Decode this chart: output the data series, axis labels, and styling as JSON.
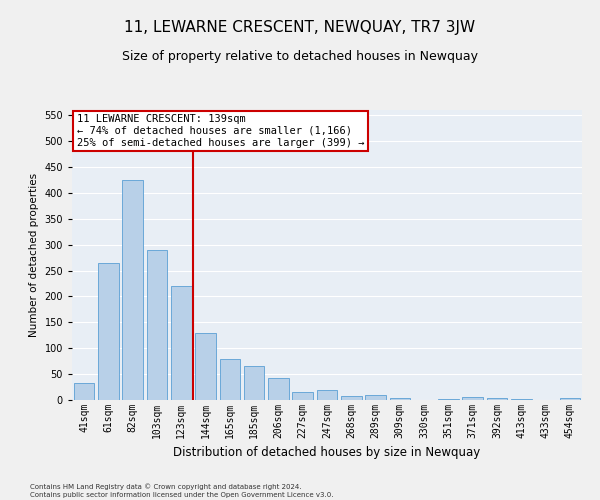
{
  "title": "11, LEWARNE CRESCENT, NEWQUAY, TR7 3JW",
  "subtitle": "Size of property relative to detached houses in Newquay",
  "xlabel": "Distribution of detached houses by size in Newquay",
  "ylabel": "Number of detached properties",
  "footer_line1": "Contains HM Land Registry data © Crown copyright and database right 2024.",
  "footer_line2": "Contains public sector information licensed under the Open Government Licence v3.0.",
  "categories": [
    "41sqm",
    "61sqm",
    "82sqm",
    "103sqm",
    "123sqm",
    "144sqm",
    "165sqm",
    "185sqm",
    "206sqm",
    "227sqm",
    "247sqm",
    "268sqm",
    "289sqm",
    "309sqm",
    "330sqm",
    "351sqm",
    "371sqm",
    "392sqm",
    "413sqm",
    "433sqm",
    "454sqm"
  ],
  "values": [
    32,
    265,
    425,
    290,
    220,
    130,
    80,
    65,
    42,
    15,
    20,
    8,
    10,
    3,
    0,
    2,
    5,
    3,
    2,
    0,
    3
  ],
  "bar_color": "#b8d0e8",
  "bar_edgecolor": "#5a9fd4",
  "vline_color": "#cc0000",
  "annotation_text": "11 LEWARNE CRESCENT: 139sqm\n← 74% of detached houses are smaller (1,166)\n25% of semi-detached houses are larger (399) →",
  "annotation_box_color": "#ffffff",
  "annotation_box_edgecolor": "#cc0000",
  "ylim": [
    0,
    560
  ],
  "yticks": [
    0,
    50,
    100,
    150,
    200,
    250,
    300,
    350,
    400,
    450,
    500,
    550
  ],
  "bg_color": "#e8eef5",
  "grid_color": "#ffffff",
  "fig_bg_color": "#f0f0f0",
  "title_fontsize": 11,
  "subtitle_fontsize": 9,
  "xlabel_fontsize": 8.5,
  "ylabel_fontsize": 7.5,
  "tick_fontsize": 7,
  "annotation_fontsize": 7.5
}
